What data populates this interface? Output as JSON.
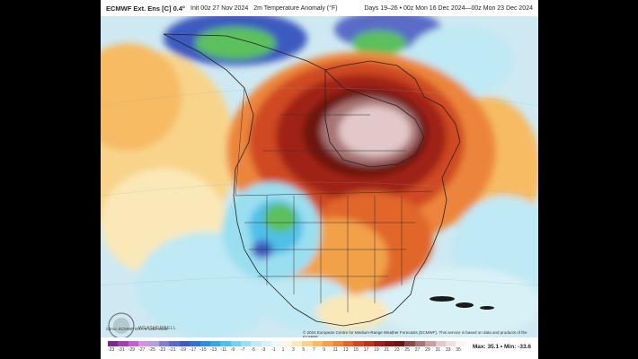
{
  "header": {
    "model": "ECMWF Ext. Ens [C] 0.4°",
    "init": "Init 00z 27 Nov 2024",
    "field": "2m Temperature Anomaly (°F)",
    "period": "Days 19–26 • 00z Mon 16 Dec 2024—00z Mon 23 Dec 2024"
  },
  "credits": {
    "climo": "Climo: ECMWF ERA-5 1991-2020",
    "copyright": "© 2024 European Centre for Medium-Range Weather Forecasts (ECMWF). This service is based on data and products of the ECMWF.",
    "logo": "WEATHERBELL"
  },
  "legend": {
    "ticks": [
      "-33",
      "-31",
      "-29",
      "-27",
      "-25",
      "-23",
      "-21",
      "-19",
      "-17",
      "-15",
      "-13",
      "-11",
      "-9",
      "-7",
      "-5",
      "-3",
      "-1",
      "1",
      "3",
      "5",
      "7",
      "9",
      "11",
      "13",
      "15",
      "17",
      "19",
      "21",
      "23",
      "25",
      "27",
      "29",
      "31",
      "33",
      "35"
    ],
    "colors": [
      "#7a2a8a",
      "#a040b0",
      "#c060d0",
      "#d890e0",
      "#b0a0e0",
      "#8080d0",
      "#5a6cc8",
      "#3e5abf",
      "#2e74c8",
      "#2f8fd8",
      "#3aa8e0",
      "#4fc0e8",
      "#74d2ee",
      "#9adff0",
      "#bfe9f4",
      "#d8f1f7",
      "#eef8fa",
      "#fdf6e3",
      "#fbe8b8",
      "#f8d48a",
      "#f6bb63",
      "#f2a14a",
      "#ec853a",
      "#e0662c",
      "#cf4a22",
      "#b9341c",
      "#a02218",
      "#851814",
      "#6e1410",
      "#8a4a4a",
      "#a87474",
      "#c8a0a0",
      "#e2c8c8",
      "#f0e0e0",
      "#faf4f4"
    ],
    "max_label": "Max: 35.1",
    "min_label": "Min: -33.6"
  },
  "colors": {
    "ocean": "#d6eef6",
    "land_border": "#222222"
  }
}
